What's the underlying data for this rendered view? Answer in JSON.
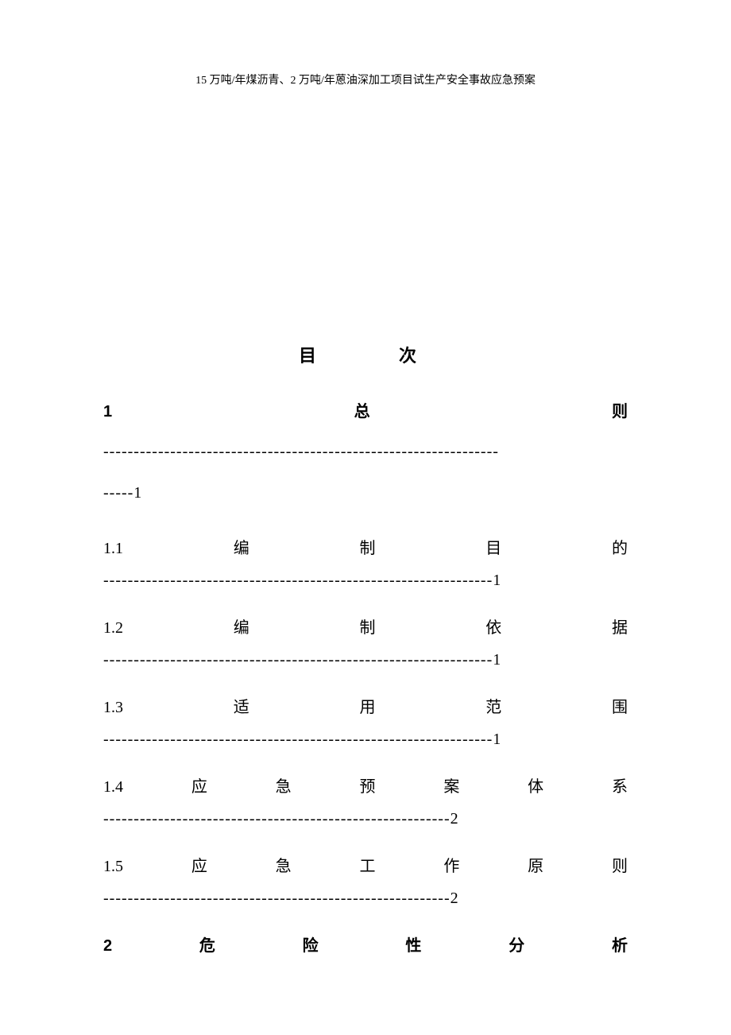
{
  "header": "15 万吨/年煤沥青、2 万吨/年蒽油深加工项目试生产安全事故应急预案",
  "title": "目　　次",
  "toc": [
    {
      "num": "1",
      "chars": [
        "总",
        "则"
      ],
      "dashes": "----------------------------------------------------------------------1",
      "bold": true,
      "wrap": true
    },
    {
      "num": "1.1",
      "chars": [
        "编",
        "制",
        "目",
        "的"
      ],
      "dashes": "----------------------------------------------------------------1",
      "bold": false
    },
    {
      "num": "1.2",
      "chars": [
        "编",
        "制",
        "依",
        "据"
      ],
      "dashes": "----------------------------------------------------------------1",
      "bold": false
    },
    {
      "num": "1.3",
      "chars": [
        "适",
        "用",
        "范",
        "围"
      ],
      "dashes": "----------------------------------------------------------------1",
      "bold": false
    },
    {
      "num": "1.4",
      "chars": [
        "应",
        "急",
        "预",
        "案",
        "体",
        "系"
      ],
      "dashes": "---------------------------------------------------------2",
      "bold": false
    },
    {
      "num": "1.5",
      "chars": [
        "应",
        "急",
        "工",
        "作",
        "原",
        "则"
      ],
      "dashes": "---------------------------------------------------------2",
      "bold": false
    },
    {
      "num": "2",
      "chars": [
        "危",
        "险",
        "性",
        "分",
        "析"
      ],
      "dashes": "",
      "bold": true
    }
  ],
  "colors": {
    "text": "#000000",
    "background": "#ffffff"
  },
  "fonts": {
    "body_size": 20,
    "header_size": 14,
    "title_size": 22
  }
}
